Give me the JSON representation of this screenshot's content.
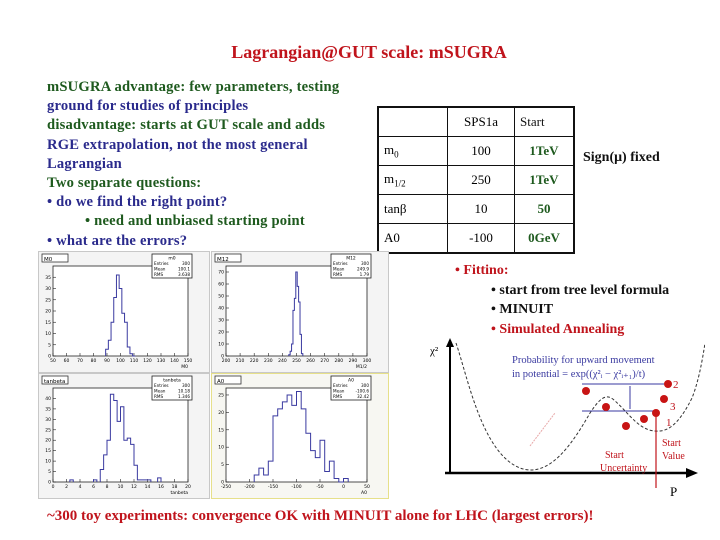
{
  "slide": {
    "title": "Lagrangian@GUT scale: mSUGRA",
    "left_text": [
      {
        "text": "mSUGRA advantage: few parameters, testing",
        "color": "green"
      },
      {
        "text": "ground for studies of principles",
        "color": "blue"
      },
      {
        "text": "disadvantage: starts at GUT scale and adds",
        "color": "green"
      },
      {
        "text": "RGE extrapolation, not the most general",
        "color": "blue"
      },
      {
        "text": "Lagrangian",
        "color": "blue"
      },
      {
        "text": "Two separate questions:",
        "color": "green"
      },
      {
        "text": "• do we find the right point?",
        "color": "blue"
      },
      {
        "text": "• need and unbiased starting point",
        "color": "green",
        "indent": true
      },
      {
        "text": "• what are the errors?",
        "color": "blue"
      }
    ],
    "param_table": {
      "headers": [
        "",
        "SPS1a",
        "Start"
      ],
      "rows": [
        {
          "param": "m0",
          "sps1a": "100",
          "start": "1TeV"
        },
        {
          "param": "m1/2",
          "sps1a": "250",
          "start": "1TeV"
        },
        {
          "param": "tanβ",
          "sps1a": "10",
          "start": "50"
        },
        {
          "param": "A0",
          "sps1a": "-100",
          "start": "0GeV"
        }
      ]
    },
    "sign_note": "Sign(μ) fixed",
    "fittino": {
      "heading": "• Fittino:",
      "items": [
        {
          "text": "• start from tree level formula",
          "color": "#111111"
        },
        {
          "text": "• MINUIT",
          "color": "#111111"
        },
        {
          "text": "• Simulated Annealing",
          "color": "#c0141c"
        }
      ]
    },
    "annealing_diagram": {
      "y_axis_label": "χ²",
      "x_axis_label": "P",
      "caption_line1": "Probability for upward movement",
      "caption_line2": "in potential = exp((χ²ᵢ − χ²ᵢ₊₁)/t)",
      "point_labels": [
        "1",
        "2",
        "3"
      ],
      "start_uncertainty_label": [
        "Start",
        "Uncertainty"
      ],
      "start_value_label": [
        "Start",
        "Value"
      ]
    },
    "footer": "~300 toy experiments: convergence OK with MINUIT alone for LHC (largest errors)!",
    "colors": {
      "title_red": "#c0141c",
      "green": "#1e5a1e",
      "blue": "#2a2a8c",
      "hist_line": "#3a3aa0"
    }
  },
  "chart_data": [
    {
      "type": "bar",
      "title": "M0",
      "xlabel": "M0",
      "stats": {
        "name": "m0",
        "Entries": "300",
        "Mean": "100.1",
        "RMS": "3.638"
      },
      "xlim": [
        50,
        150
      ],
      "ylim": [
        0,
        40
      ],
      "x_ticks": [
        "50",
        "60",
        "70",
        "80",
        "90",
        "100",
        "110",
        "120",
        "130",
        "140",
        "150"
      ],
      "y_ticks": [
        "0",
        "5",
        "10",
        "15",
        "20",
        "25",
        "30",
        "35"
      ],
      "x": [
        90,
        92,
        94,
        96,
        98,
        100,
        102,
        104,
        106,
        108,
        110
      ],
      "values": [
        3,
        7,
        15,
        26,
        36,
        30,
        19,
        15,
        4,
        1,
        0
      ]
    },
    {
      "type": "bar",
      "title": "M12",
      "xlabel": "M1/2",
      "stats": {
        "name": "M12",
        "Entries": "300",
        "Mean": "249.9",
        "RMS": "1.79"
      },
      "xlim": [
        200,
        300
      ],
      "ylim": [
        0,
        75
      ],
      "x_ticks": [
        "200",
        "210",
        "220",
        "230",
        "240",
        "250",
        "260",
        "270",
        "280",
        "290",
        "300"
      ],
      "y_ticks": [
        "0",
        "10",
        "20",
        "30",
        "40",
        "50",
        "60",
        "70"
      ],
      "x": [
        245,
        246,
        247,
        248,
        249,
        250,
        251,
        252,
        253,
        254
      ],
      "values": [
        1,
        4,
        10,
        38,
        48,
        70,
        58,
        45,
        18,
        2
      ]
    },
    {
      "type": "bar",
      "title": "tanbeta",
      "xlabel": "tanbeta",
      "stats": {
        "name": "tanbeta",
        "Entries": "300",
        "Mean": "10.18",
        "RMS": "1.346"
      },
      "xlim": [
        0,
        20
      ],
      "ylim": [
        0,
        45
      ],
      "x_ticks": [
        "0",
        "2",
        "4",
        "6",
        "8",
        "10",
        "12",
        "14",
        "16",
        "18",
        "20"
      ],
      "y_ticks": [
        "0",
        "5",
        "10",
        "15",
        "20",
        "25",
        "30",
        "35",
        "40"
      ],
      "x": [
        2.75,
        6.25,
        7.25,
        7.75,
        8.25,
        8.75,
        9.25,
        9.75,
        10.25,
        10.75,
        11.25,
        11.75,
        12.25,
        12.75,
        13.25,
        13.75,
        14.25,
        15.75
      ],
      "values": [
        1,
        1,
        6,
        13,
        20,
        42,
        39,
        29,
        36,
        20,
        21,
        18,
        8,
        1,
        1,
        1,
        1,
        2
      ]
    },
    {
      "type": "bar",
      "title": "A0",
      "xlabel": "A0",
      "stats": {
        "name": "A0",
        "Entries": "300",
        "Mean": "-100.6",
        "RMS": "32.42"
      },
      "xlim": [
        -250,
        50
      ],
      "ylim": [
        0,
        27
      ],
      "x_ticks": [
        "-250",
        "-200",
        "-150",
        "-100",
        "-50",
        "0",
        "50"
      ],
      "y_ticks": [
        "0",
        "5",
        "10",
        "15",
        "20",
        "25"
      ],
      "x": [
        -185,
        -175,
        -165,
        -155,
        -145,
        -135,
        -125,
        -115,
        -105,
        -95,
        -85,
        -75,
        -65,
        -55,
        -45,
        -35,
        -25,
        -15,
        -5,
        5
      ],
      "values": [
        2,
        4,
        2,
        6,
        19,
        21,
        23,
        25,
        22,
        26,
        21,
        14,
        9,
        7,
        12,
        3,
        6,
        1,
        0,
        1
      ]
    }
  ]
}
